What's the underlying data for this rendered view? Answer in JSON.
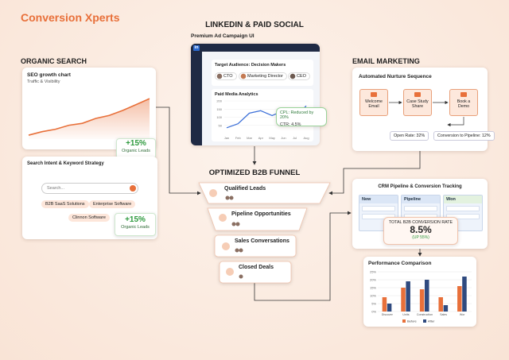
{
  "brand": "Conversion Xperts",
  "linkedin": {
    "title": "LINKEDIN & PAID SOCIAL",
    "subtitle": "Premium Ad Campaign UI",
    "logo": "in",
    "audience": {
      "label": "Target Audience: Decision Makers",
      "chips": [
        "CTO",
        "Marketing Director",
        "CEO"
      ]
    },
    "analytics": {
      "type": "line",
      "title": "Paid Media Analytics",
      "categories": [
        "Jan",
        "Feb",
        "Mar",
        "Apr",
        "May",
        "Jun",
        "Jul",
        "Aug"
      ],
      "values": [
        35,
        60,
        125,
        140,
        110,
        140,
        95,
        170
      ],
      "color": "#3b6fd8",
      "ylim": [
        0,
        200
      ],
      "yticks": [
        50,
        100,
        150,
        200
      ],
      "grid": true
    },
    "callout": [
      "CPL: Reduced by 20%",
      "CTR: 4.5%"
    ]
  },
  "organic": {
    "title": "ORGANIC SEARCH",
    "seo": {
      "title": "SEO growth chart",
      "subtitle": "Traffic & Visibility",
      "chart": {
        "type": "area",
        "values": [
          8,
          15,
          20,
          28,
          32,
          42,
          48,
          58,
          70,
          82
        ],
        "color": "#e8703a",
        "ylim": [
          0,
          100
        ]
      },
      "badge": {
        "value": "+15%",
        "label": "Organic Leads"
      }
    },
    "intent": {
      "title": "Search Intent & Keyword Strategy",
      "search_placeholder": "Search...",
      "chips": [
        "B2B SaaS Solutions",
        "Enterprise Software",
        "Clinnon Software"
      ],
      "badge": {
        "value": "+15%",
        "label": "Organic Leads"
      }
    }
  },
  "email": {
    "title": "EMAIL MARKETING",
    "card_title": "Automated Nurture Sequence",
    "steps": [
      "Welcome Email",
      "Case Study Share",
      "Book a Demo"
    ],
    "stats": [
      "Open Rate: 32%",
      "Conversion to Pipeline: 12%"
    ]
  },
  "funnel": {
    "title": "OPTIMIZED B2B FUNNEL",
    "stages": [
      "Qualified Leads",
      "Pipeline Opportunities",
      "Sales Conversations",
      "Closed Deals"
    ]
  },
  "crm": {
    "title": "CRM Pipeline & Conversion Tracking",
    "columns": [
      "New",
      "Pipeline",
      "Won"
    ],
    "rate_label": "TOTAL B2B CONVERSION RATE",
    "rate": "8.5%",
    "change": "(UP 55%)"
  },
  "performance": {
    "type": "bar",
    "title": "Performance Comparison",
    "categories": [
      "Discover",
      "Units",
      "Construction",
      "Sales",
      "Wor"
    ],
    "series": [
      {
        "name": "Before",
        "color": "#e8703a",
        "values": [
          9,
          15,
          14,
          9,
          16
        ]
      },
      {
        "name": "After",
        "color": "#2f4a7f",
        "values": [
          5,
          19,
          20,
          4,
          22
        ]
      }
    ],
    "ylim": [
      0,
      25
    ],
    "yticks": [
      {
        "value": 0,
        "label": "0%"
      },
      {
        "value": 5,
        "label": "5%"
      },
      {
        "value": 10,
        "label": "10%"
      },
      {
        "value": 15,
        "label": "15%"
      },
      {
        "value": 20,
        "label": "20%"
      },
      {
        "value": 25,
        "label": "25%"
      }
    ],
    "grid": true
  }
}
